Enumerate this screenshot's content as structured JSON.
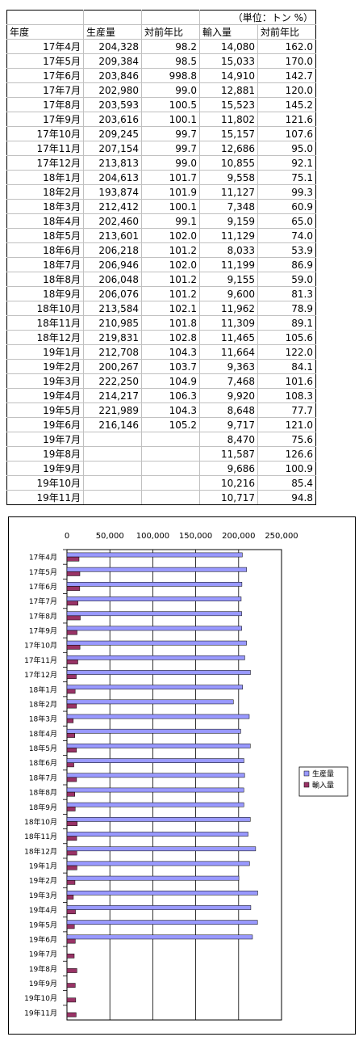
{
  "table": {
    "unit": "（単位：トン %）",
    "headers": [
      "年度",
      "生産量",
      "対前年比",
      "輸入量",
      "対前年比"
    ],
    "rows": [
      [
        "17年4月",
        "204,328",
        "98.2",
        "14,080",
        "162.0"
      ],
      [
        "17年5月",
        "209,384",
        "98.5",
        "15,033",
        "170.0"
      ],
      [
        "17年6月",
        "203,846",
        "998.8",
        "14,910",
        "142.7"
      ],
      [
        "17年7月",
        "202,980",
        "99.0",
        "12,881",
        "120.0"
      ],
      [
        "17年8月",
        "203,593",
        "100.5",
        "15,523",
        "145.2"
      ],
      [
        "17年9月",
        "203,616",
        "100.1",
        "11,802",
        "121.6"
      ],
      [
        "17年10月",
        "209,245",
        "99.7",
        "15,157",
        "107.6"
      ],
      [
        "17年11月",
        "207,154",
        "99.7",
        "12,686",
        "95.0"
      ],
      [
        "17年12月",
        "213,813",
        "99.0",
        "10,855",
        "92.1"
      ],
      [
        "18年1月",
        "204,613",
        "101.7",
        "9,558",
        "75.1"
      ],
      [
        "18年2月",
        "193,874",
        "101.9",
        "11,127",
        "99.3"
      ],
      [
        "18年3月",
        "212,412",
        "100.1",
        "7,348",
        "60.9"
      ],
      [
        "18年4月",
        "202,460",
        "99.1",
        "9,159",
        "65.0"
      ],
      [
        "18年5月",
        "213,601",
        "102.0",
        "11,129",
        "74.0"
      ],
      [
        "18年6月",
        "206,218",
        "101.2",
        "8,033",
        "53.9"
      ],
      [
        "18年7月",
        "206,946",
        "102.0",
        "11,199",
        "86.9"
      ],
      [
        "18年8月",
        "206,048",
        "101.2",
        "9,155",
        "59.0"
      ],
      [
        "18年9月",
        "206,076",
        "101.2",
        "9,600",
        "81.3"
      ],
      [
        "18年10月",
        "213,584",
        "102.1",
        "11,962",
        "78.9"
      ],
      [
        "18年11月",
        "210,985",
        "101.8",
        "11,309",
        "89.1"
      ],
      [
        "18年12月",
        "219,831",
        "102.8",
        "11,465",
        "105.6"
      ],
      [
        "19年1月",
        "212,708",
        "104.3",
        "11,664",
        "122.0"
      ],
      [
        "19年2月",
        "200,267",
        "103.7",
        "9,363",
        "84.1"
      ],
      [
        "19年3月",
        "222,250",
        "104.9",
        "7,468",
        "101.6"
      ],
      [
        "19年4月",
        "214,217",
        "106.3",
        "9,920",
        "108.3"
      ],
      [
        "19年5月",
        "221,989",
        "104.3",
        "8,648",
        "77.7"
      ],
      [
        "19年6月",
        "216,146",
        "105.2",
        "9,717",
        "121.0"
      ],
      [
        "19年7月",
        "",
        "",
        "8,470",
        "75.6"
      ],
      [
        "19年8月",
        "",
        "",
        "11,587",
        "126.6"
      ],
      [
        "19年9月",
        "",
        "",
        "9,686",
        "100.9"
      ],
      [
        "19年10月",
        "",
        "",
        "10,216",
        "85.4"
      ],
      [
        "19年11月",
        "",
        "",
        "10,717",
        "94.8"
      ]
    ]
  },
  "chart_data": {
    "type": "bar",
    "orientation": "horizontal",
    "title": "",
    "xlabel": "",
    "ylabel": "",
    "xlim": [
      0,
      250000
    ],
    "x_ticks": [
      "0",
      "50,000",
      "100,000",
      "150,000",
      "200,000",
      "250,000"
    ],
    "x_tick_values": [
      0,
      50000,
      100000,
      150000,
      200000,
      250000
    ],
    "grid": true,
    "legend_position": "right",
    "categories": [
      "17年4月",
      "17年5月",
      "17年6月",
      "17年7月",
      "17年8月",
      "17年9月",
      "17年10月",
      "17年11月",
      "17年12月",
      "18年1月",
      "18年2月",
      "18年3月",
      "18年4月",
      "18年5月",
      "18年6月",
      "18年7月",
      "18年8月",
      "18年9月",
      "18年10月",
      "18年11月",
      "18年12月",
      "19年1月",
      "19年2月",
      "19年3月",
      "19年4月",
      "19年5月",
      "19年6月",
      "19年7月",
      "19年8月",
      "19年9月",
      "19年10月",
      "19年11月"
    ],
    "series": [
      {
        "name": "生産量",
        "color": "#9999ff",
        "values": [
          204328,
          209384,
          203846,
          202980,
          203593,
          203616,
          209245,
          207154,
          213813,
          204613,
          193874,
          212412,
          202460,
          213601,
          206218,
          206946,
          206048,
          206076,
          213584,
          210985,
          219831,
          212708,
          200267,
          222250,
          214217,
          221989,
          216146,
          null,
          null,
          null,
          null,
          null
        ]
      },
      {
        "name": "輸入量",
        "color": "#993366",
        "values": [
          14080,
          15033,
          14910,
          12881,
          15523,
          11802,
          15157,
          12686,
          10855,
          9558,
          11127,
          7348,
          9159,
          11129,
          8033,
          11199,
          9155,
          9600,
          11962,
          11309,
          11465,
          11664,
          9363,
          7468,
          9920,
          8648,
          9717,
          8470,
          11587,
          9686,
          10216,
          10717
        ]
      }
    ]
  }
}
